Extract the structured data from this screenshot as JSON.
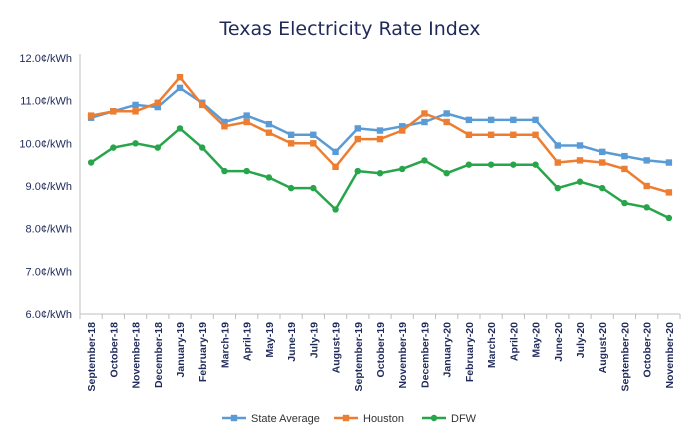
{
  "chart_data": {
    "type": "line",
    "title": "Texas Electricity Rate Index",
    "xlabel": "",
    "ylabel": "",
    "ylim": [
      6.0,
      12.0
    ],
    "yticks": [
      "6.0¢/kWh",
      "7.0¢/kWh",
      "8.0¢/kWh",
      "9.0¢/kWh",
      "10.0¢/kWh",
      "11.0¢/kWh",
      "12.0¢/kWh"
    ],
    "grid": false,
    "legend": "bottom",
    "categories": [
      "September-18",
      "October-18",
      "November-18",
      "December-18",
      "January-19",
      "February-19",
      "March-19",
      "April-19",
      "May-19",
      "June-19",
      "July-19",
      "August-19",
      "September-19",
      "October-19",
      "November-19",
      "December-19",
      "January-20",
      "February-20",
      "March-20",
      "April-20",
      "May-20",
      "June-20",
      "July-20",
      "August-20",
      "September-20",
      "October-20",
      "November-20"
    ],
    "series": [
      {
        "name": "State Average",
        "color": "#5b9bd5",
        "values": [
          10.6,
          10.75,
          10.9,
          10.85,
          11.3,
          10.95,
          10.5,
          10.65,
          10.45,
          10.2,
          10.2,
          9.8,
          10.35,
          10.3,
          10.4,
          10.5,
          10.7,
          10.55,
          10.55,
          10.55,
          10.55,
          9.95,
          9.95,
          9.8,
          9.7,
          9.6,
          9.55
        ]
      },
      {
        "name": "Houston",
        "color": "#ed7d31",
        "values": [
          10.65,
          10.75,
          10.75,
          10.95,
          11.55,
          10.9,
          10.4,
          10.5,
          10.25,
          10.0,
          10.0,
          9.45,
          10.1,
          10.1,
          10.3,
          10.7,
          10.5,
          10.2,
          10.2,
          10.2,
          10.2,
          9.55,
          9.6,
          9.55,
          9.4,
          9.0,
          8.85
        ]
      },
      {
        "name": "DFW",
        "color": "#27a54a",
        "values": [
          9.55,
          9.9,
          10.0,
          9.9,
          10.35,
          9.9,
          9.35,
          9.35,
          9.2,
          8.95,
          8.95,
          8.45,
          9.35,
          9.3,
          9.4,
          9.6,
          9.3,
          9.5,
          9.5,
          9.5,
          9.5,
          8.95,
          9.1,
          8.95,
          8.6,
          8.5,
          8.25
        ]
      }
    ]
  }
}
